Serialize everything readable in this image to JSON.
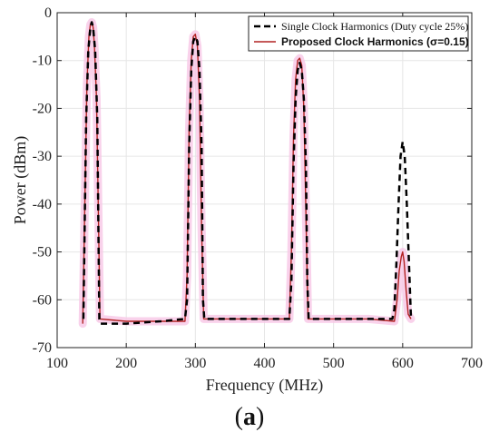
{
  "chart_data": {
    "type": "line",
    "title": "",
    "xlabel": "Frequency (MHz)",
    "ylabel": "Power (dBm)",
    "xlim": [
      100,
      700
    ],
    "ylim": [
      -70,
      0
    ],
    "xticks": [
      100,
      200,
      300,
      400,
      500,
      600,
      700
    ],
    "yticks": [
      0,
      -10,
      -20,
      -30,
      -40,
      -50,
      -60,
      -70
    ],
    "xtick_labels": [
      "100",
      "200",
      "300",
      "400",
      "500",
      "600",
      "700"
    ],
    "ytick_labels": [
      "0",
      "-10",
      "-20",
      "-30",
      "-40",
      "-50",
      "-60",
      "-70"
    ],
    "grid": true,
    "legend_position": "top-right",
    "series": [
      {
        "name": "Single Clock  Harmonics (Duty cycle 25%)",
        "style": "dashed",
        "color": "#000000",
        "x": [
          138,
          142,
          145,
          148,
          150,
          152,
          155,
          158,
          161,
          163,
          165,
          200,
          250,
          285,
          288,
          291,
          294,
          297,
          300,
          303,
          306,
          309,
          311,
          313,
          350,
          400,
          436,
          439,
          442,
          445,
          448,
          451,
          454,
          457,
          460,
          462,
          464,
          500,
          550,
          585,
          588,
          591,
          594,
          597,
          600,
          603,
          606,
          609,
          612
        ],
        "y": [
          -64,
          -22,
          -8,
          -3,
          -2,
          -3,
          -8,
          -22,
          -64,
          -65,
          -65,
          -65,
          -64.5,
          -64,
          -60,
          -28,
          -12,
          -6,
          -5,
          -6,
          -12,
          -28,
          -60,
          -64,
          -64,
          -64,
          -64,
          -56,
          -32,
          -18,
          -12,
          -10.5,
          -12,
          -18,
          -32,
          -56,
          -64,
          -64,
          -64,
          -64,
          -62,
          -52,
          -40,
          -30,
          -27,
          -30,
          -40,
          -52,
          -64
        ]
      },
      {
        "name": "Proposed Clock Harmonics (σ=0.15)",
        "style": "solid",
        "color": "#b22222",
        "x": [
          137,
          140,
          143,
          146,
          148,
          150,
          152,
          154,
          157,
          160,
          162,
          200,
          250,
          285,
          288,
          291,
          294,
          297,
          300,
          303,
          306,
          309,
          312,
          350,
          400,
          436,
          439,
          442,
          445,
          448,
          451,
          454,
          457,
          460,
          463,
          500,
          550,
          588,
          592,
          595,
          598,
          600,
          602,
          605,
          608,
          612
        ],
        "y": [
          -65,
          -40,
          -15,
          -5,
          -2.5,
          -2,
          -3,
          -7,
          -18,
          -45,
          -64,
          -64.5,
          -64.5,
          -64.5,
          -55,
          -24,
          -10,
          -5,
          -4.5,
          -7,
          -18,
          -45,
          -64,
          -64,
          -64,
          -64,
          -50,
          -26,
          -14,
          -10,
          -9.5,
          -11,
          -20,
          -42,
          -64,
          -64,
          -64,
          -64.5,
          -60,
          -54,
          -51,
          -50,
          -52,
          -58,
          -63,
          -64
        ]
      }
    ]
  },
  "caption": {
    "open": "(",
    "letter": "a",
    "close": ")"
  }
}
